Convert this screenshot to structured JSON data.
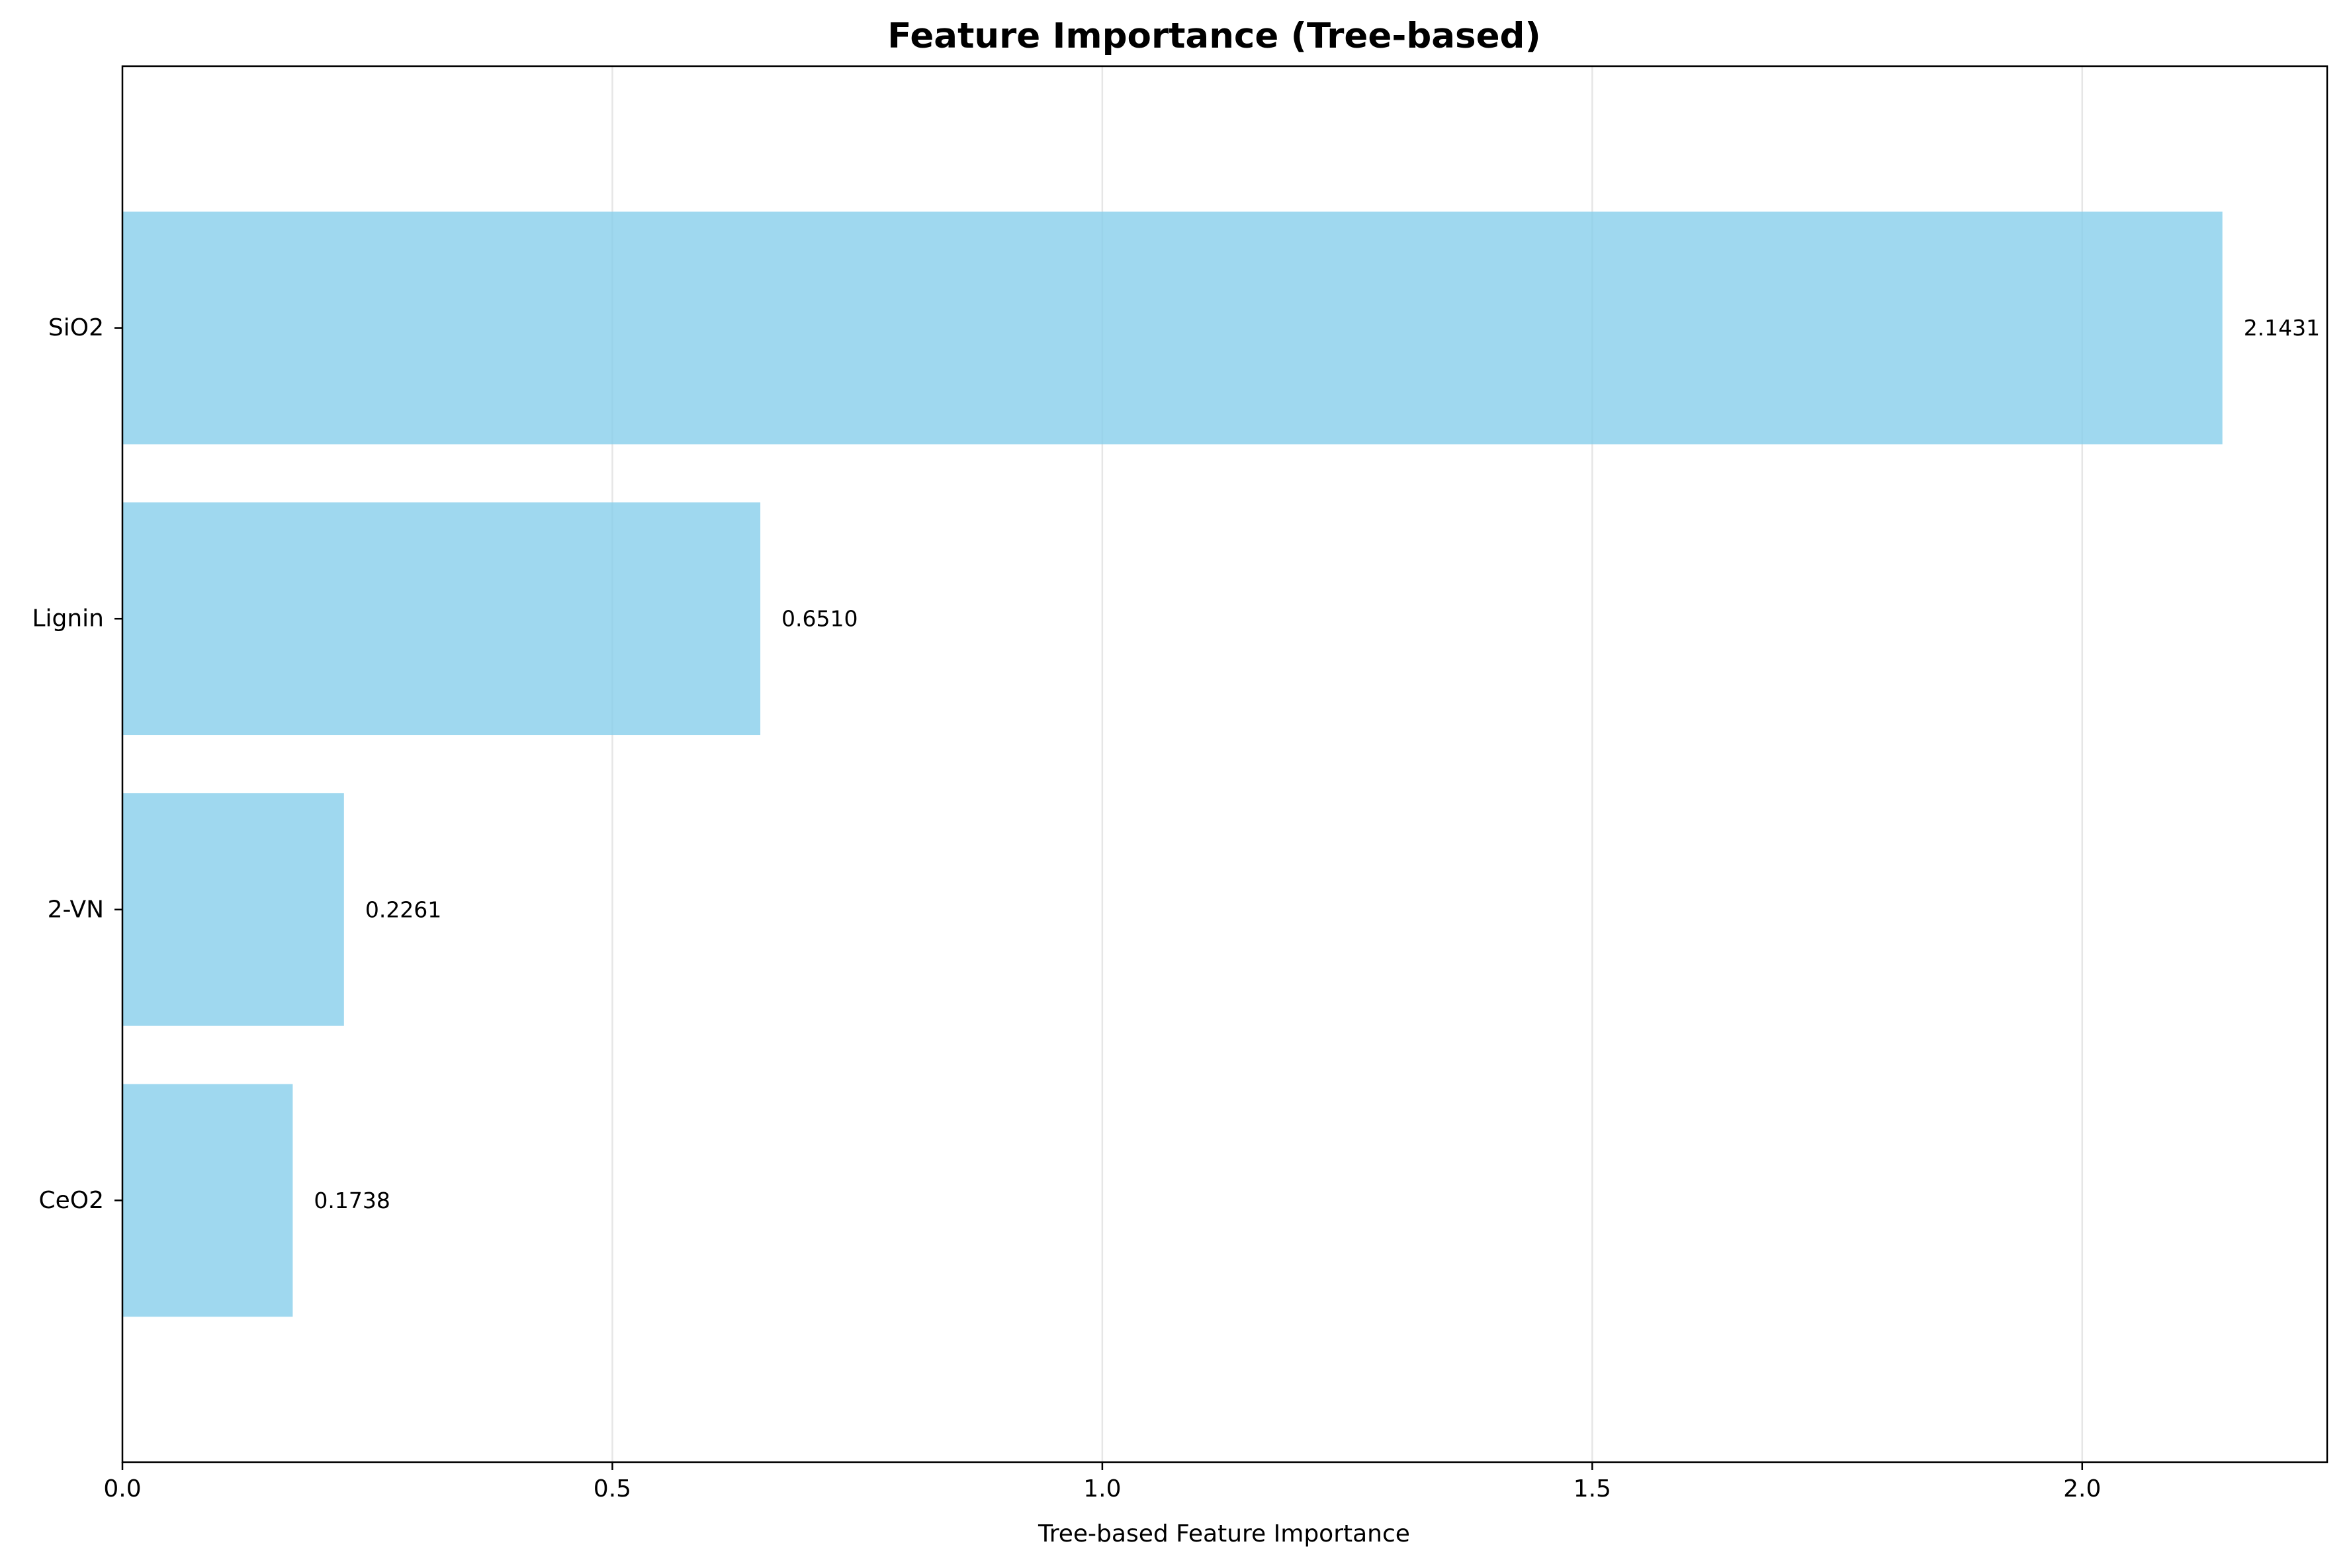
{
  "chart_data": {
    "type": "bar",
    "orientation": "horizontal",
    "title": "Feature Importance (Tree-based)",
    "xlabel": "Tree-based Feature Importance",
    "ylabel": "",
    "categories": [
      "CeO2",
      "2-VN",
      "Lignin",
      "SiO2"
    ],
    "values": [
      0.1738,
      0.2261,
      0.651,
      2.1431
    ],
    "value_labels": [
      "0.1738",
      "0.2261",
      "0.6510",
      "2.1431"
    ],
    "xlim": [
      0,
      2.25
    ],
    "xticks": [
      0.0,
      0.5,
      1.0,
      1.5,
      2.0
    ],
    "xtick_labels": [
      "0.0",
      "0.5",
      "1.0",
      "1.5",
      "2.0"
    ],
    "grid": "x",
    "bar_color": "#87CEEB",
    "bar_opacity": 0.8,
    "grid_color": "#e6e6e6"
  }
}
